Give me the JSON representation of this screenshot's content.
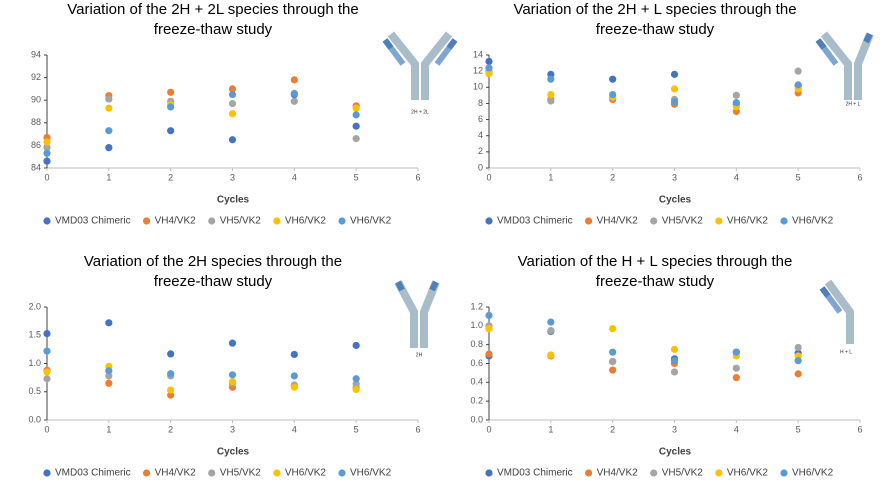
{
  "chart_data": [
    {
      "type": "scatter",
      "title": [
        "Variation of the 2H + 2L species through the",
        "freeze-thaw study"
      ],
      "icon_label": "2H + 2L",
      "x_label": "Cycles",
      "x": [
        0,
        1,
        2,
        3,
        4,
        5
      ],
      "xlim": [
        0,
        6
      ],
      "xticks": [
        0,
        1,
        2,
        3,
        4,
        5,
        6
      ],
      "ylim": [
        84,
        94
      ],
      "yticks": [
        84,
        86,
        88,
        90,
        92,
        94
      ],
      "grid": false,
      "legend": "bottom",
      "series": [
        {
          "name": "VMD03 Chimeric",
          "color": "#4472c4",
          "values": [
            84.6,
            85.8,
            87.3,
            86.5,
            90.5,
            87.7
          ]
        },
        {
          "name": "VH4/VK2",
          "color": "#ed7d31",
          "values": [
            86.7,
            90.4,
            90.7,
            91.0,
            91.8,
            89.5
          ]
        },
        {
          "name": "VH5/VK2",
          "color": "#a5a5a5",
          "values": [
            85.8,
            90.1,
            89.9,
            89.7,
            89.9,
            86.6
          ]
        },
        {
          "name": "VH6/VK2",
          "color": "#ffc000",
          "values": [
            86.3,
            89.3,
            89.6,
            88.8,
            null,
            89.3
          ]
        },
        {
          "name": "VH6/VK2",
          "color": "#5b9bd5",
          "values": [
            85.3,
            87.3,
            89.4,
            90.5,
            90.6,
            88.7
          ]
        }
      ]
    },
    {
      "type": "scatter",
      "title": [
        "Variation of the 2H + L species through the",
        "freeze-thaw study"
      ],
      "icon_label": "2H + L",
      "x_label": "Cycles",
      "x": [
        0,
        1,
        2,
        3,
        4,
        5
      ],
      "xlim": [
        0,
        6
      ],
      "xticks": [
        0,
        1,
        2,
        3,
        4,
        5,
        6
      ],
      "ylim": [
        0,
        14
      ],
      "yticks": [
        0,
        2,
        4,
        6,
        8,
        10,
        12,
        14
      ],
      "grid": false,
      "legend": "bottom",
      "series": [
        {
          "name": "VMD03 Chimeric",
          "color": "#4472c4",
          "values": [
            13.2,
            11.6,
            11.0,
            11.6,
            7.9,
            10.2
          ]
        },
        {
          "name": "VH4/VK2",
          "color": "#ed7d31",
          "values": [
            11.9,
            8.5,
            8.5,
            7.9,
            7.0,
            9.3
          ]
        },
        {
          "name": "VH5/VK2",
          "color": "#a5a5a5",
          "values": [
            12.0,
            8.3,
            8.7,
            8.5,
            9.0,
            12.0
          ]
        },
        {
          "name": "VH6/VK2",
          "color": "#ffc000",
          "values": [
            11.7,
            9.1,
            8.8,
            9.8,
            7.6,
            9.8
          ]
        },
        {
          "name": "VH6/VK2",
          "color": "#5b9bd5",
          "values": [
            12.4,
            11.0,
            9.1,
            8.2,
            8.1,
            10.3
          ]
        }
      ]
    },
    {
      "type": "scatter",
      "title": [
        "Variation of the 2H species through the",
        "freeze-thaw study"
      ],
      "icon_label": "2H",
      "x_label": "Cycles",
      "x": [
        0,
        1,
        2,
        3,
        4,
        5
      ],
      "xlim": [
        0,
        6
      ],
      "xticks": [
        0,
        1,
        2,
        3,
        4,
        5,
        6
      ],
      "ylim": [
        0,
        2
      ],
      "yticks": [
        {
          "value": 0,
          "label": "0.0"
        },
        0.5,
        {
          "value": 1,
          "label": "1.0"
        },
        1.5,
        {
          "value": 2,
          "label": "2.0"
        }
      ],
      "grid": false,
      "legend": "bottom",
      "series": [
        {
          "name": "VMD03 Chimeric",
          "color": "#4472c4",
          "values": [
            1.53,
            1.72,
            1.17,
            1.36,
            1.16,
            1.32
          ]
        },
        {
          "name": "VH4/VK2",
          "color": "#ed7d31",
          "values": [
            0.88,
            0.65,
            0.44,
            0.58,
            0.6,
            0.57
          ]
        },
        {
          "name": "VH5/VK2",
          "color": "#a5a5a5",
          "values": [
            0.73,
            0.78,
            0.78,
            0.65,
            0.62,
            0.64
          ]
        },
        {
          "name": "VH6/VK2",
          "color": "#ffc000",
          "values": [
            0.85,
            0.95,
            0.53,
            0.68,
            0.58,
            0.54
          ]
        },
        {
          "name": "VH6/VK2",
          "color": "#5b9bd5",
          "values": [
            1.22,
            0.87,
            0.82,
            0.8,
            0.78,
            0.73
          ]
        }
      ]
    },
    {
      "type": "scatter",
      "title": [
        "Variation of the H + L species through the",
        "freeze-thaw study"
      ],
      "icon_label": "H + L",
      "x_label": "Cycles",
      "x": [
        0,
        1,
        2,
        3,
        4,
        5
      ],
      "xlim": [
        0,
        6
      ],
      "xticks": [
        0,
        1,
        2,
        3,
        4,
        5,
        6
      ],
      "ylim": [
        0,
        1.2
      ],
      "yticks": [
        {
          "value": 0,
          "label": "0.0"
        },
        0.2,
        0.4,
        0.6,
        0.8,
        {
          "value": 1,
          "label": "1.0"
        },
        1.2
      ],
      "grid": false,
      "legend": "bottom",
      "series": [
        {
          "name": "VMD03 Chimeric",
          "color": "#4472c4",
          "values": [
            0.68,
            0.94,
            0.62,
            0.65,
            0.72,
            0.71
          ]
        },
        {
          "name": "VH4/VK2",
          "color": "#ed7d31",
          "values": [
            0.7,
            0.68,
            0.53,
            0.6,
            0.45,
            0.49
          ]
        },
        {
          "name": "VH5/VK2",
          "color": "#a5a5a5",
          "values": [
            1.0,
            0.95,
            0.62,
            0.51,
            0.55,
            0.77
          ]
        },
        {
          "name": "VH6/VK2",
          "color": "#ffc000",
          "values": [
            0.97,
            0.69,
            0.97,
            0.75,
            0.68,
            0.68
          ]
        },
        {
          "name": "VH6/VK2",
          "color": "#5b9bd5",
          "values": [
            1.11,
            1.04,
            0.72,
            0.63,
            0.72,
            0.63
          ]
        }
      ]
    }
  ]
}
